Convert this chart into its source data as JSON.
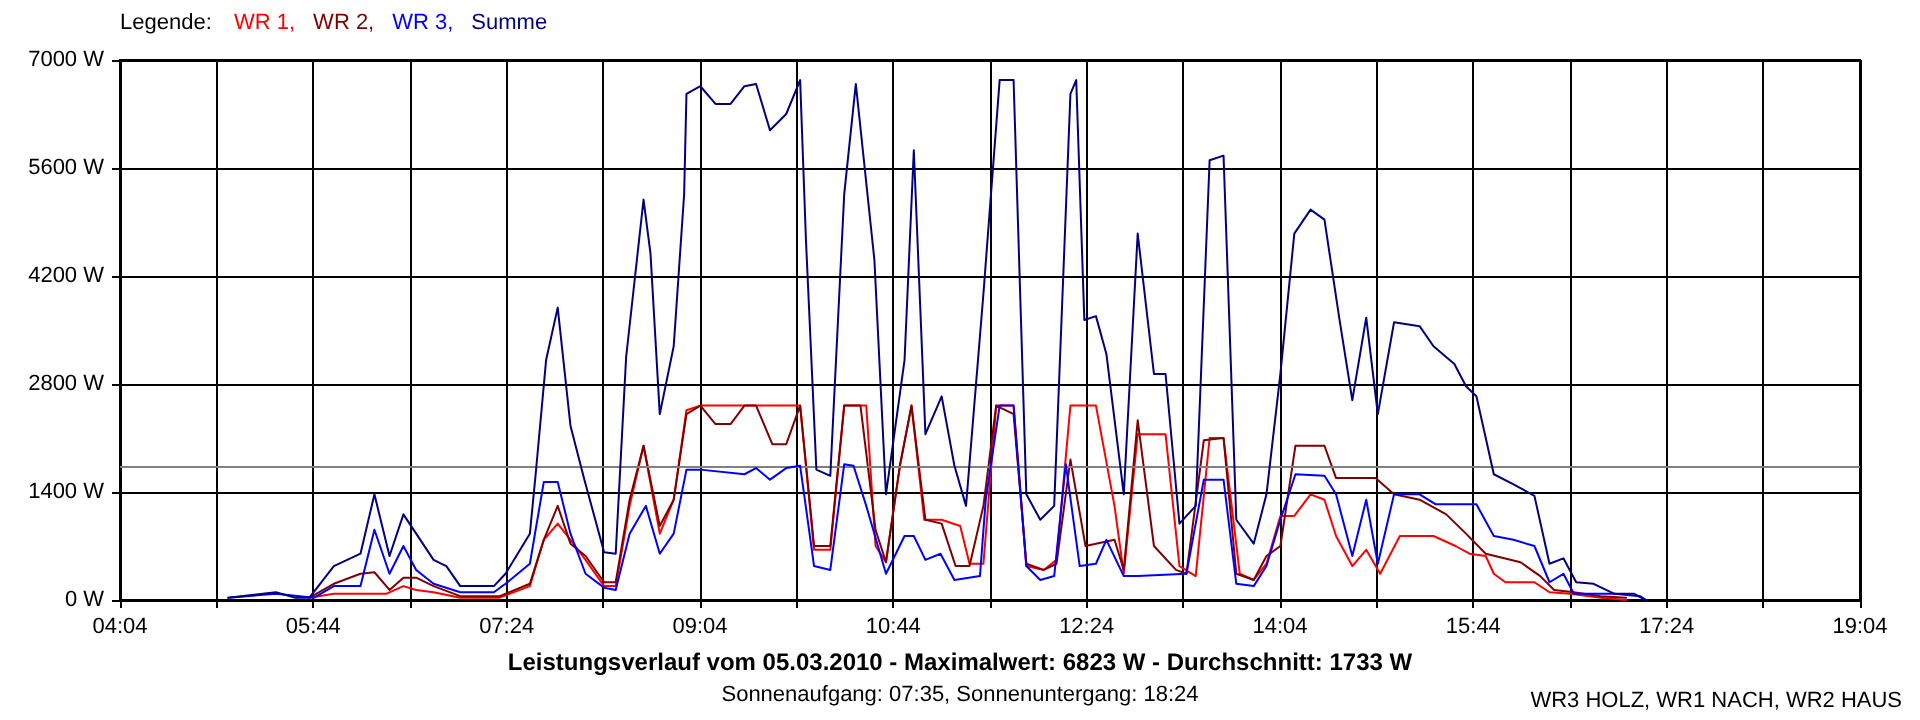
{
  "chart_data": {
    "type": "line",
    "title": "Leistungsverlauf vom 05.03.2010 - Maximalwert: 6823 W - Durchschnitt: 1733 W",
    "subtitle": "Sonnenaufgang: 07:35, Sonnenuntergang: 18:24",
    "annotations": [
      "WR3 HOLZ, WR1 NACH, WR2 HAUS"
    ],
    "legend_title": "Legende:",
    "legend": "top left",
    "grid": true,
    "marker": "none",
    "line_style": "solid",
    "xlim": [
      4.0667,
      19.0667
    ],
    "xticks": [
      {
        "value": 4.0667,
        "label": "04:04"
      },
      {
        "value": 4.9,
        "label": null
      },
      {
        "value": 5.7333,
        "label": "05:44"
      },
      {
        "value": 6.5667,
        "label": null
      },
      {
        "value": 7.4,
        "label": "07:24"
      },
      {
        "value": 8.2333,
        "label": null
      },
      {
        "value": 9.0667,
        "label": "09:04"
      },
      {
        "value": 9.9,
        "label": null
      },
      {
        "value": 10.7333,
        "label": "10:44"
      },
      {
        "value": 11.5667,
        "label": null
      },
      {
        "value": 12.4,
        "label": "12:24"
      },
      {
        "value": 13.2333,
        "label": null
      },
      {
        "value": 14.0667,
        "label": "14:04"
      },
      {
        "value": 14.9,
        "label": null
      },
      {
        "value": 15.7333,
        "label": "15:44"
      },
      {
        "value": 16.5667,
        "label": null
      },
      {
        "value": 17.4,
        "label": "17:24"
      },
      {
        "value": 18.2333,
        "label": null
      },
      {
        "value": 19.0667,
        "label": "19:04"
      }
    ],
    "ylim": [
      0,
      7000
    ],
    "yticks": [
      {
        "value": 0,
        "label": "0 W"
      },
      {
        "value": 1400,
        "label": "1400 W"
      },
      {
        "value": 2800,
        "label": "2800 W"
      },
      {
        "value": 4200,
        "label": "4200 W"
      },
      {
        "value": 5600,
        "label": "5600 W"
      },
      {
        "value": 7000,
        "label": "7000 W"
      }
    ],
    "ref_lines": [
      {
        "axis": "y",
        "value": 1733,
        "color": "#808080"
      }
    ],
    "series": [
      {
        "name": "WR 1,",
        "color": "#ff0000",
        "x": [
          5.7,
          5.91,
          6.36,
          6.51,
          6.62,
          6.77,
          7.0,
          7.34,
          7.6,
          7.72,
          7.84,
          7.95,
          8.08,
          8.24,
          8.34,
          8.46,
          8.58,
          8.72,
          8.84,
          8.95,
          9.07,
          9.93,
          10.05,
          10.19,
          10.31,
          10.5,
          10.58,
          10.67,
          10.79,
          10.89,
          11.0,
          11.15,
          11.31,
          11.39,
          11.51,
          11.62,
          11.77,
          11.88,
          12.03,
          12.14,
          12.26,
          12.48,
          12.64,
          12.72,
          12.84,
          13.08,
          13.2,
          13.34,
          13.46,
          13.58,
          13.72,
          13.84,
          13.95,
          14.07,
          14.19,
          14.33,
          14.45,
          14.55,
          14.69,
          14.81,
          14.93,
          15.1,
          15.39,
          15.58,
          15.7,
          15.84,
          15.91,
          16.01,
          16.26,
          16.39,
          16.57,
          16.83,
          17.05
        ],
        "values": [
          30,
          80,
          80,
          180,
          130,
          100,
          30,
          30,
          180,
          780,
          990,
          780,
          520,
          180,
          180,
          1220,
          2000,
          860,
          1300,
          2460,
          2520,
          2520,
          650,
          650,
          2520,
          2520,
          700,
          490,
          1740,
          2520,
          1040,
          1040,
          960,
          470,
          470,
          2520,
          2520,
          440,
          390,
          520,
          2520,
          2520,
          1220,
          340,
          2150,
          2150,
          440,
          310,
          2100,
          2100,
          340,
          260,
          470,
          1090,
          1090,
          1370,
          1300,
          830,
          440,
          650,
          340,
          830,
          830,
          700,
          600,
          570,
          340,
          230,
          230,
          100,
          80,
          30,
          0
        ]
      },
      {
        "name": "WR 2,",
        "color": "#800000",
        "x": [
          5.7,
          5.91,
          6.14,
          6.26,
          6.39,
          6.51,
          6.62,
          6.77,
          7.0,
          7.34,
          7.6,
          7.72,
          7.84,
          7.95,
          8.08,
          8.24,
          8.34,
          8.46,
          8.58,
          8.72,
          8.84,
          8.95,
          9.07,
          9.2,
          9.33,
          9.45,
          9.55,
          9.69,
          9.81,
          9.93,
          10.05,
          10.19,
          10.31,
          10.45,
          10.58,
          10.67,
          10.79,
          10.89,
          11.01,
          11.15,
          11.27,
          11.39,
          11.51,
          11.62,
          11.77,
          11.88,
          12.03,
          12.14,
          12.26,
          12.39,
          12.64,
          12.72,
          12.84,
          12.98,
          13.17,
          13.26,
          13.41,
          13.58,
          13.69,
          13.84,
          13.95,
          14.07,
          14.2,
          14.45,
          14.55,
          14.89,
          15.05,
          15.27,
          15.5,
          15.67,
          15.84,
          16.0,
          16.14,
          16.31,
          16.43,
          16.6,
          16.83,
          17.05
        ],
        "values": [
          30,
          210,
          340,
          360,
          130,
          290,
          290,
          180,
          50,
          50,
          210,
          780,
          1220,
          730,
          570,
          230,
          230,
          1300,
          2000,
          960,
          1300,
          2410,
          2520,
          2280,
          2280,
          2520,
          2520,
          2020,
          2020,
          2520,
          700,
          700,
          2520,
          2520,
          910,
          490,
          1740,
          2520,
          1040,
          990,
          440,
          440,
          1220,
          2520,
          2410,
          470,
          390,
          470,
          1820,
          700,
          780,
          390,
          2330,
          700,
          390,
          340,
          2070,
          2100,
          340,
          260,
          570,
          700,
          2000,
          2000,
          1580,
          1580,
          1370,
          1300,
          1110,
          860,
          600,
          540,
          490,
          310,
          130,
          100,
          50,
          30
        ]
      },
      {
        "name": "WR 3,",
        "color": "#0000ff",
        "x": [
          5.0,
          5.41,
          5.74,
          5.91,
          6.14,
          6.26,
          6.39,
          6.51,
          6.62,
          6.77,
          7.0,
          7.29,
          7.39,
          7.6,
          7.72,
          7.84,
          7.95,
          8.08,
          8.24,
          8.34,
          8.46,
          8.6,
          8.72,
          8.84,
          8.95,
          9.07,
          9.45,
          9.55,
          9.67,
          9.81,
          9.93,
          10.05,
          10.19,
          10.31,
          10.39,
          10.5,
          10.67,
          10.83,
          10.91,
          11.01,
          11.14,
          11.26,
          11.48,
          11.53,
          11.65,
          11.77,
          11.88,
          12.0,
          12.12,
          12.22,
          12.34,
          12.48,
          12.57,
          12.72,
          12.84,
          13.26,
          13.41,
          13.58,
          13.69,
          13.84,
          13.95,
          14.07,
          14.2,
          14.45,
          14.55,
          14.69,
          14.81,
          14.91,
          15.05,
          15.27,
          15.41,
          15.76,
          15.91,
          16.08,
          16.26,
          16.39,
          16.51,
          16.6,
          16.95,
          17.17,
          17.22
        ],
        "values": [
          30,
          80,
          30,
          180,
          180,
          910,
          340,
          700,
          390,
          210,
          100,
          100,
          210,
          470,
          1530,
          1530,
          860,
          340,
          160,
          130,
          860,
          1220,
          600,
          860,
          1690,
          1690,
          1630,
          1710,
          1560,
          1710,
          1740,
          440,
          390,
          1760,
          1740,
          1220,
          340,
          830,
          830,
          520,
          600,
          260,
          310,
          1300,
          2520,
          2520,
          440,
          260,
          310,
          1760,
          440,
          470,
          780,
          310,
          310,
          340,
          1560,
          1560,
          210,
          180,
          440,
          1040,
          1630,
          1610,
          1370,
          570,
          1300,
          470,
          1370,
          1370,
          1240,
          1240,
          830,
          780,
          700,
          230,
          340,
          80,
          80,
          50,
          0
        ]
      },
      {
        "name": "Summe",
        "color": "#000080",
        "x": [
          5.0,
          5.41,
          5.58,
          5.7,
          5.91,
          6.14,
          6.26,
          6.39,
          6.51,
          6.62,
          6.77,
          6.88,
          7.0,
          7.29,
          7.39,
          7.6,
          7.65,
          7.74,
          7.84,
          7.95,
          8.07,
          8.24,
          8.34,
          8.43,
          8.58,
          8.64,
          8.72,
          8.84,
          8.93,
          8.95,
          9.07,
          9.2,
          9.33,
          9.45,
          9.55,
          9.67,
          9.81,
          9.93,
          9.98,
          10.07,
          10.19,
          10.31,
          10.41,
          10.57,
          10.67,
          10.83,
          10.91,
          11.01,
          11.15,
          11.26,
          11.36,
          11.51,
          11.65,
          11.77,
          11.88,
          12.0,
          12.12,
          12.26,
          12.31,
          12.38,
          12.48,
          12.57,
          12.72,
          12.84,
          12.98,
          13.08,
          13.2,
          13.34,
          13.46,
          13.58,
          13.69,
          13.84,
          13.95,
          14.07,
          14.19,
          14.33,
          14.45,
          14.58,
          14.69,
          14.81,
          14.91,
          15.05,
          15.27,
          15.39,
          15.57,
          15.67,
          15.76,
          15.91,
          16.08,
          16.26,
          16.39,
          16.51,
          16.62,
          16.77,
          16.95,
          17.12,
          17.22
        ],
        "values": [
          30,
          100,
          30,
          30,
          440,
          600,
          1370,
          570,
          1110,
          860,
          520,
          440,
          180,
          180,
          340,
          860,
          1630,
          3110,
          3790,
          2260,
          1560,
          620,
          600,
          3150,
          5190,
          4490,
          2410,
          3290,
          5260,
          6560,
          6660,
          6430,
          6430,
          6660,
          6690,
          6090,
          6300,
          6740,
          4670,
          1690,
          1610,
          5260,
          6690,
          4410,
          1370,
          3110,
          5830,
          2150,
          2640,
          1740,
          1220,
          3970,
          6740,
          6740,
          1370,
          1040,
          1220,
          6560,
          6740,
          3630,
          3680,
          3190,
          1370,
          4750,
          2930,
          2930,
          990,
          1220,
          5700,
          5760,
          1040,
          730,
          1370,
          2930,
          4750,
          5060,
          4930,
          3630,
          2590,
          3660,
          2410,
          3600,
          3550,
          3290,
          3060,
          2770,
          2640,
          1630,
          1500,
          1350,
          470,
          540,
          230,
          210,
          80,
          80,
          0
        ]
      }
    ]
  }
}
